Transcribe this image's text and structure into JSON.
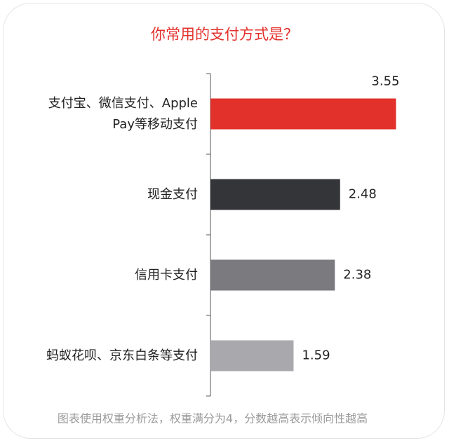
{
  "chart_data": {
    "type": "barh",
    "title": "你常用的支付方式是？",
    "categories": [
      "支付宝、微信支付、Apple\nPay等移动支付",
      "现金支付",
      "信用卡支付",
      "蚂蚁花呗、京东白条等支付"
    ],
    "values": [
      3.55,
      2.48,
      2.38,
      1.59
    ],
    "colors": [
      "#e2302b",
      "#333538",
      "#7b7a7f",
      "#a9a8ad"
    ],
    "xlim": [
      0,
      4
    ],
    "note": "图表使用权重分析法，权重满分为4，分数越高表示倾向性越高"
  }
}
